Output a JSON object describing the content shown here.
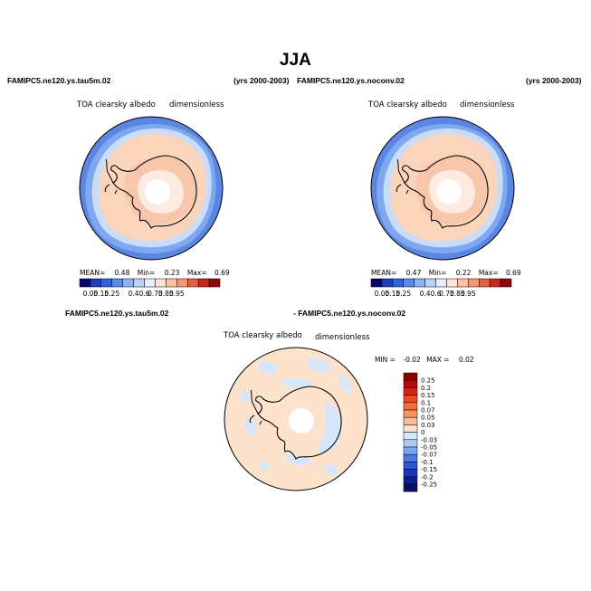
{
  "title": "JJA",
  "panel1": {
    "case_label": "FAMIPC5.ne120.ys.tau5m.02",
    "years_label": "(yrs 2000-2003)",
    "variable": "TOA clearsky albedo",
    "units": "dimensionless",
    "stats": {
      "mean_label": "MEAN=",
      "mean": "0.48",
      "min_label": "Min=",
      "min": "0.23",
      "max_label": "Max=",
      "max": "0.69"
    }
  },
  "panel2": {
    "case_label": "FAMIPC5.ne120.ys.noconv.02",
    "years_label": "(yrs 2000-2003)",
    "variable": "TOA clearsky albedo",
    "units": "dimensionless",
    "stats": {
      "mean_label": "MEAN=",
      "mean": "0.47",
      "min_label": "Min=",
      "min": "0.22",
      "max_label": "Max=",
      "max": "0.69"
    }
  },
  "panel3": {
    "left_label": "FAMIPC5.ne120.ys.tau5m.02",
    "right_label": "- FAMIPC5.ne120.ys.noconv.02",
    "variable": "TOA clearsky albedo",
    "units": "dimensionless",
    "stats": {
      "min_label": "MIN =",
      "min": "-0.02",
      "max_label": "MAX =",
      "max": "0.02"
    }
  },
  "chart_data": [
    {
      "type": "heatmap",
      "projection": "south polar stereographic",
      "title": "FAMIPC5.ne120.ys.tau5m.02",
      "colorbar": {
        "levels": [
          "0.05",
          "0.15",
          "0.25",
          "0.4",
          "0.6",
          "0.75",
          "0.85",
          "0.95"
        ],
        "colors": [
          "#08066b",
          "#1f3fb8",
          "#3263d6",
          "#5c8ae6",
          "#8fb3f2",
          "#bcd3f7",
          "#e6eefb",
          "#fde4d4",
          "#fcc0a3",
          "#f59772",
          "#e2603f",
          "#c4281f",
          "#8a0b0b"
        ]
      },
      "field_colors": {
        "ocean_far": "#5b86e4",
        "ocean_mid": "#7fa8f0",
        "ice_edge": "#c9dcf8",
        "sea_ice": "#fbd4bc",
        "continent": "#f8c7ab",
        "plateau": "#fdebe0",
        "pole_high": "#ffffff"
      }
    },
    {
      "type": "heatmap",
      "projection": "south polar stereographic",
      "title": "FAMIPC5.ne120.ys.noconv.02",
      "colorbar": {
        "levels": [
          "0.05",
          "0.15",
          "0.25",
          "0.4",
          "0.6",
          "0.75",
          "0.85",
          "0.95"
        ],
        "colors": [
          "#08066b",
          "#1f3fb8",
          "#3263d6",
          "#5c8ae6",
          "#8fb3f2",
          "#bcd3f7",
          "#e6eefb",
          "#fde4d4",
          "#fcc0a3",
          "#f59772",
          "#e2603f",
          "#c4281f",
          "#8a0b0b"
        ]
      },
      "field_colors": {
        "ocean_far": "#5b86e4",
        "ocean_mid": "#7fa8f0",
        "ice_edge": "#c9dcf8",
        "sea_ice": "#fbd4bc",
        "continent": "#f8c7ab",
        "plateau": "#fdebe0",
        "pole_high": "#ffffff"
      }
    },
    {
      "type": "heatmap",
      "projection": "south polar stereographic",
      "title": "FAMIPC5.ne120.ys.tau5m.02 - FAMIPC5.ne120.ys.noconv.02",
      "colorbar": {
        "levels": [
          "0.25",
          "0.2",
          "0.15",
          "0.1",
          "0.07",
          "0.05",
          "0.03",
          "0",
          "-0.03",
          "-0.05",
          "-0.07",
          "-0.1",
          "-0.15",
          "-0.2",
          "-0.25"
        ],
        "colors": [
          "#8a0000",
          "#b50a0a",
          "#d8220f",
          "#ee4a1e",
          "#f36d3e",
          "#f7935f",
          "#fbbb98",
          "#fde2cc",
          "#d7e7fb",
          "#aecaf5",
          "#7aa5ef",
          "#4a7be5",
          "#2a56d8",
          "#1836b8",
          "#0c1f92",
          "#061069"
        ]
      },
      "field_colors": {
        "positive_small": "#fde2cc",
        "negative_small": "#d7e7fb",
        "pole_missing": "#ffffff"
      }
    }
  ]
}
